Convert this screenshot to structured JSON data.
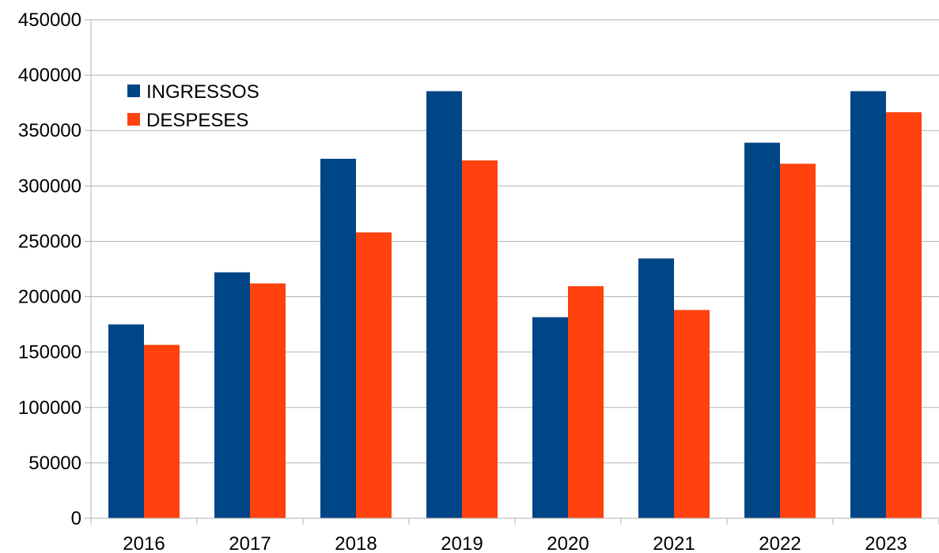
{
  "chart_data": {
    "type": "bar",
    "title": "",
    "xlabel": "",
    "ylabel": "",
    "categories": [
      "2016",
      "2017",
      "2018",
      "2019",
      "2020",
      "2021",
      "2022",
      "2023"
    ],
    "series": [
      {
        "name": "INGRESSOS",
        "color": "#004586",
        "values": [
          175000,
          222000,
          324500,
          385500,
          181500,
          234500,
          339000,
          385500
        ]
      },
      {
        "name": "DESPESES",
        "color": "#FF420E",
        "values": [
          156500,
          212000,
          258000,
          323000,
          209500,
          188000,
          320000,
          366500
        ]
      }
    ],
    "ylim": [
      0,
      450000
    ],
    "yticks": [
      "0",
      "50000",
      "100000",
      "150000",
      "200000",
      "250000",
      "300000",
      "350000",
      "400000",
      "450000"
    ],
    "grid": true,
    "legend_position": "top-left"
  }
}
